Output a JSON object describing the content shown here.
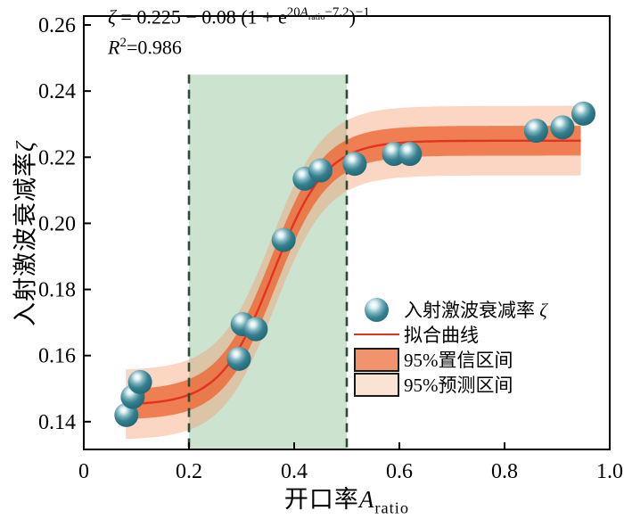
{
  "colors": {
    "scatter_dark": "#1e616f",
    "scatter_mid": "#35808f",
    "scatter_highlight": "#ffffff",
    "fit_line": "#e23222",
    "confidence_band": "rgba(236,101,50,0.78)",
    "confidence_swatch": "#f1936d",
    "prediction_band": "rgba(243,152,105,0.40)",
    "prediction_swatch": "#fbe3d4",
    "green_region_fill": "#cbe3cf",
    "green_region_border": "#2c4a34",
    "axis": "#000000"
  },
  "annotation": {
    "eq": {
      "var": "ζ",
      "body": " = 0.225 − 0.08 (1 + e",
      "exp_pre": "20",
      "exp_var": "A",
      "exp_sub": "ratio",
      "exp_tail": "−7.2",
      "close": ")",
      "outer_exp": "−1"
    },
    "r2": {
      "r": "R",
      "sup": "2",
      "rest": "=0.986"
    }
  },
  "legend": {
    "items": [
      {
        "type": "point",
        "label_prefix": "入射激波衰减率 ",
        "label_var": "ζ"
      },
      {
        "type": "line",
        "label": "拟合曲线"
      },
      {
        "type": "box-confidence",
        "label": "95%置信区间"
      },
      {
        "type": "box-prediction",
        "label": "95%预测区间"
      }
    ]
  },
  "chart_data": {
    "type": "scatter",
    "xlabel": {
      "prefix": "开口率",
      "variable": "A",
      "subscript": "ratio"
    },
    "ylabel": {
      "prefix": "入射激波衰减率",
      "variable": "ζ"
    },
    "xlim": [
      0,
      1.0
    ],
    "ylim": [
      0.1316,
      0.2627
    ],
    "x_ticks": {
      "values": [
        0,
        0.2,
        0.4,
        0.6,
        0.8,
        1.0
      ],
      "labels": [
        "0",
        "0.2",
        "0.4",
        "0.6",
        "0.8",
        "1.0"
      ]
    },
    "y_ticks": {
      "values": [
        0.14,
        0.16,
        0.18,
        0.2,
        0.22,
        0.24,
        0.26
      ],
      "labels": [
        "0.14",
        "0.16",
        "0.18",
        "0.20",
        "0.22",
        "0.24",
        "0.26"
      ]
    },
    "points": [
      [
        0.081,
        0.142
      ],
      [
        0.093,
        0.1475
      ],
      [
        0.107,
        0.152
      ],
      [
        0.295,
        0.159
      ],
      [
        0.302,
        0.1695
      ],
      [
        0.327,
        0.168
      ],
      [
        0.38,
        0.195
      ],
      [
        0.42,
        0.2135
      ],
      [
        0.45,
        0.216
      ],
      [
        0.515,
        0.218
      ],
      [
        0.59,
        0.221
      ],
      [
        0.62,
        0.221
      ],
      [
        0.86,
        0.228
      ],
      [
        0.91,
        0.229
      ],
      [
        0.95,
        0.2332
      ]
    ],
    "fit": {
      "formula": "ζ = 0.225 − 0.08 (1 + e^(20·A_ratio − 7.2))^(−1)",
      "r_squared": 0.986,
      "params": {
        "upper": 0.225,
        "drop": 0.08,
        "gain": 20,
        "offset": 7.2
      },
      "x_range": [
        0.08,
        0.945
      ]
    },
    "bands": {
      "confidence_half_base": 0.0045,
      "confidence_half_extra": 0.0016,
      "prediction_half_base": 0.0105,
      "prediction_half_extra": 0.001
    },
    "highlight_region": {
      "x0": 0.2,
      "x1": 0.5,
      "y_top": 0.245
    }
  }
}
